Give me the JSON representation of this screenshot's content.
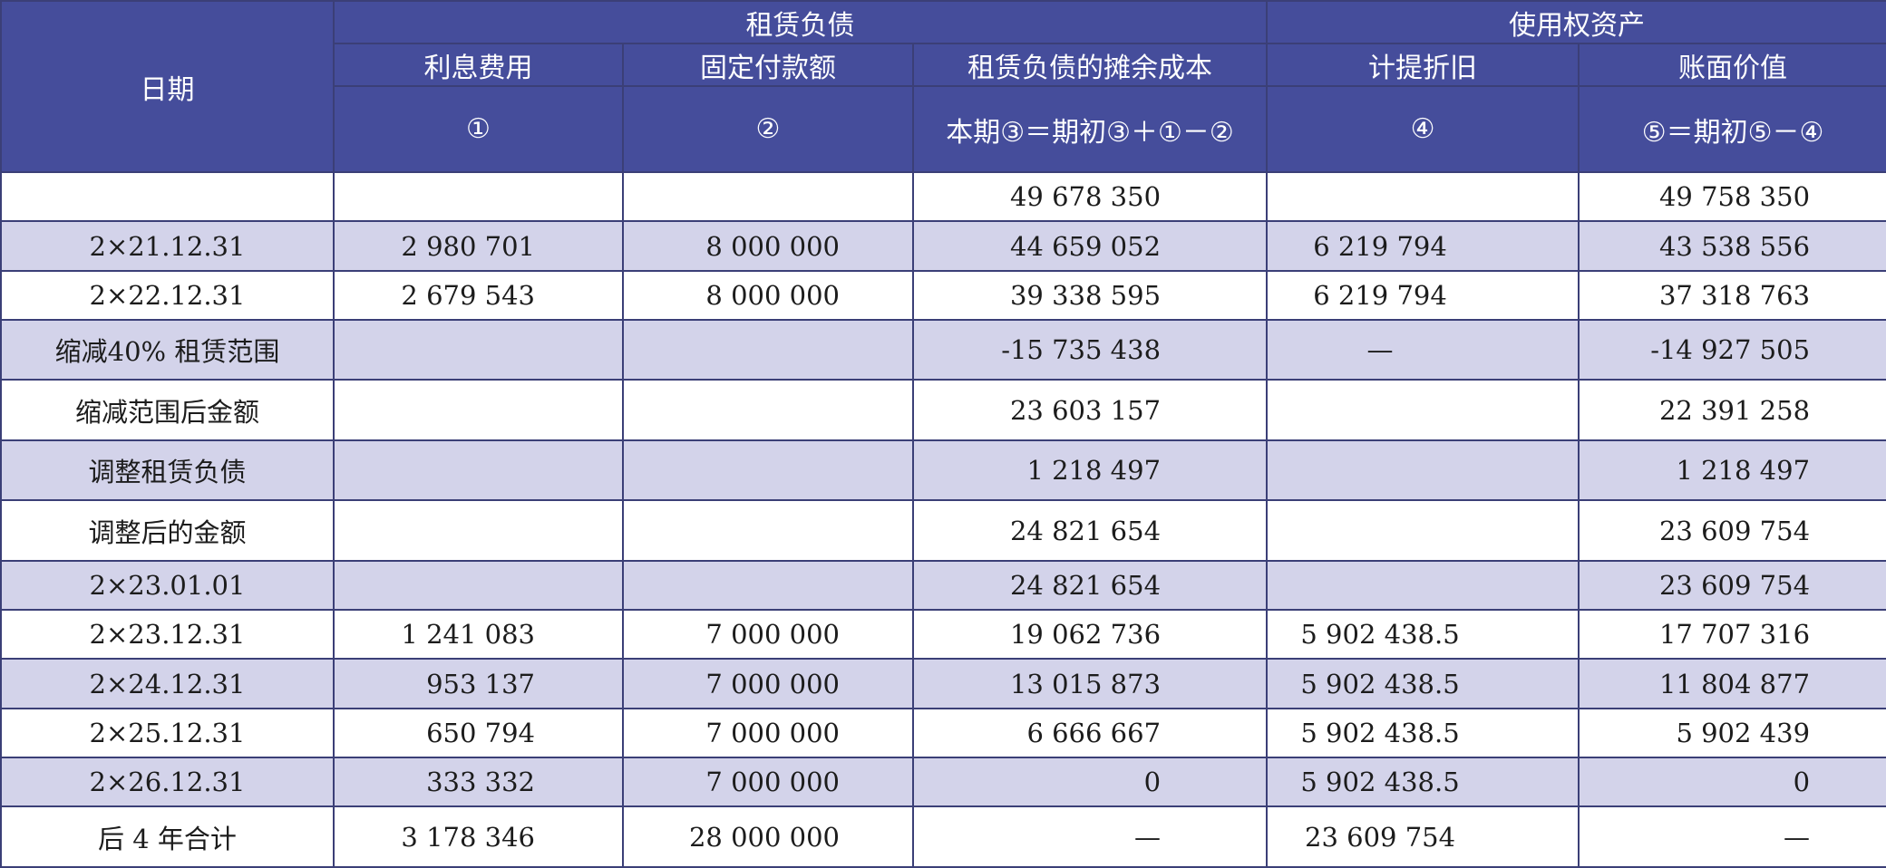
{
  "header": {
    "date": "日期",
    "group_lease_liability": "租赁负债",
    "group_rou_asset": "使用权资产",
    "col_interest": "利息费用",
    "col_fixed_payment": "固定付款额",
    "col_amortized_cost": "租赁负债的摊余成本",
    "col_depreciation": "计提折旧",
    "col_book_value": "账面价值",
    "formula_interest": "①",
    "formula_fixed_payment": "②",
    "formula_amortized_cost": "本期③＝期初③＋①－②",
    "formula_depreciation": "④",
    "formula_book_value": "⑤＝期初⑤－④"
  },
  "rows": [
    {
      "date": "",
      "interest": "",
      "payment": "",
      "amortized": "49 678 350",
      "depreciation": "",
      "book": "49 758 350"
    },
    {
      "date": "2×21.12.31",
      "interest": "2 980 701",
      "payment": "8 000 000",
      "amortized": "44 659 052",
      "depreciation": "6 219 794",
      "book": "43 538 556"
    },
    {
      "date": "2×22.12.31",
      "interest": "2 679 543",
      "payment": "8 000 000",
      "amortized": "39 338 595",
      "depreciation": "6 219 794",
      "book": "37 318 763"
    },
    {
      "date": "缩减40% 租赁范围",
      "interest": "",
      "payment": "",
      "amortized": "-15 735 438",
      "depreciation": "—",
      "book": "-14 927 505"
    },
    {
      "date": "缩减范围后金额",
      "interest": "",
      "payment": "",
      "amortized": "23 603 157",
      "depreciation": "",
      "book": "22 391 258"
    },
    {
      "date": "调整租赁负债",
      "interest": "",
      "payment": "",
      "amortized": "1 218 497",
      "depreciation": "",
      "book": "1 218 497"
    },
    {
      "date": "调整后的金额",
      "interest": "",
      "payment": "",
      "amortized": "24 821 654",
      "depreciation": "",
      "book": "23 609 754"
    },
    {
      "date": "2×23.01.01",
      "interest": "",
      "payment": "",
      "amortized": "24 821 654",
      "depreciation": "",
      "book": "23 609 754"
    },
    {
      "date": "2×23.12.31",
      "interest": "1 241 083",
      "payment": "7 000 000",
      "amortized": "19 062 736",
      "depreciation": "5 902 438.5",
      "book": "17 707 316"
    },
    {
      "date": "2×24.12.31",
      "interest": "953 137",
      "payment": "7 000 000",
      "amortized": "13 015 873",
      "depreciation": "5 902 438.5",
      "book": "11 804 877"
    },
    {
      "date": "2×25.12.31",
      "interest": "650 794",
      "payment": "7 000 000",
      "amortized": "6 666 667",
      "depreciation": "5 902 438.5",
      "book": "5 902 439"
    },
    {
      "date": "2×26.12.31",
      "interest": "333 332",
      "payment": "7 000 000",
      "amortized": "0",
      "depreciation": "5 902 438.5",
      "book": "0"
    },
    {
      "date": "后 4 年合计",
      "interest": "3 178 346",
      "payment": "28 000 000",
      "amortized": "—",
      "depreciation": "23 609 754",
      "book": "—"
    }
  ]
}
